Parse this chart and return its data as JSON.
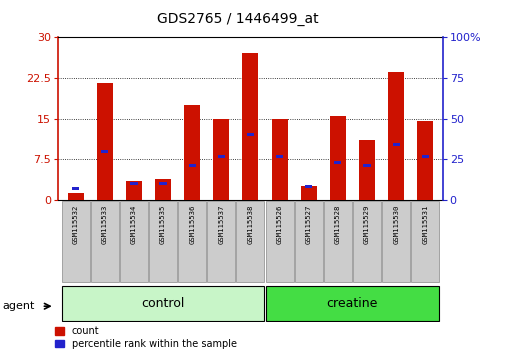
{
  "title": "GDS2765 / 1446499_at",
  "categories": [
    "GSM115532",
    "GSM115533",
    "GSM115534",
    "GSM115535",
    "GSM115536",
    "GSM115537",
    "GSM115538",
    "GSM115526",
    "GSM115527",
    "GSM115528",
    "GSM115529",
    "GSM115530",
    "GSM115531"
  ],
  "counts": [
    1.2,
    21.5,
    3.5,
    3.8,
    17.5,
    15.0,
    27.0,
    15.0,
    2.5,
    15.5,
    11.0,
    23.5,
    14.5
  ],
  "percentiles": [
    7,
    30,
    10,
    10,
    21,
    27,
    40,
    27,
    8,
    23,
    21,
    34,
    27
  ],
  "group_labels": [
    "control",
    "creatine"
  ],
  "group_colors": [
    "#c8f5c8",
    "#44dd44"
  ],
  "bar_color": "#cc1100",
  "pct_color": "#2222cc",
  "left_ylim": [
    0,
    30
  ],
  "right_ylim": [
    0,
    100
  ],
  "left_yticks": [
    0,
    7.5,
    15,
    22.5,
    30
  ],
  "right_yticks": [
    0,
    25,
    50,
    75,
    100
  ],
  "left_yticklabels": [
    "0",
    "7.5",
    "15",
    "22.5",
    "30"
  ],
  "right_yticklabels": [
    "0",
    "25",
    "50",
    "75",
    "100%"
  ],
  "legend_count": "count",
  "legend_pct": "percentile rank within the sample",
  "agent_label": "agent",
  "bg_color": "#ffffff",
  "tick_area_color": "#cccccc"
}
